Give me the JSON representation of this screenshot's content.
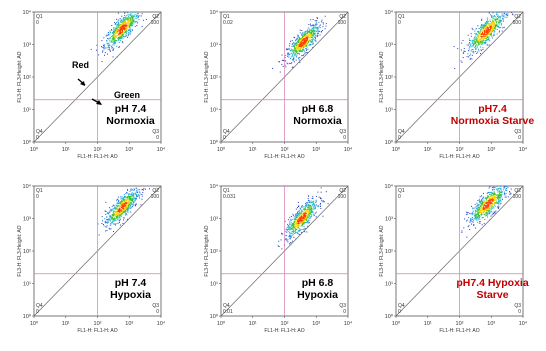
{
  "chart_data": [
    {
      "type": "scatter",
      "xlabel": "FL1-H: FL1-H: AO",
      "ylabel": "FL3-H: FL3-Height: AO",
      "x_scale": "log",
      "y_scale": "log",
      "xlim": [
        1,
        10000
      ],
      "ylim": [
        1,
        10000
      ],
      "x_ticks": [
        "10⁰",
        "10¹",
        "10²",
        "10³",
        "10⁴"
      ],
      "y_ticks": [
        "10⁰",
        "10¹",
        "10²",
        "10³",
        "10⁴"
      ],
      "quadrant_gate": {
        "x": 100,
        "y": 20
      },
      "quadrant_labels": {
        "q1": "Q1",
        "q2": "Q2",
        "q3": "Q3",
        "q4": "Q4"
      },
      "quadrant_values": {
        "q1": "0",
        "q2": "100",
        "q3": "0",
        "q4": "0"
      },
      "condition": [
        "pH 7.4",
        "Normoxia"
      ],
      "condition_color": "#000000",
      "annotations": [
        {
          "text": "Red",
          "points_to": {
            "x": 18,
            "y": 60
          }
        },
        {
          "text": "Green",
          "points_to": {
            "x": 45,
            "y": 25
          }
        }
      ],
      "cluster": {
        "center": [
          600,
          3000
        ],
        "spread": [
          0.28,
          0.3
        ]
      }
    },
    {
      "type": "scatter",
      "xlabel": "FL1-H: FL1-H: AO",
      "ylabel": "FL3-H: FL3-Height: AO",
      "x_scale": "log",
      "y_scale": "log",
      "xlim": [
        1,
        10000
      ],
      "ylim": [
        1,
        10000
      ],
      "x_ticks": [
        "10⁰",
        "10¹",
        "10²",
        "10³",
        "10⁴"
      ],
      "y_ticks": [
        "10⁰",
        "10¹",
        "10²",
        "10³",
        "10⁴"
      ],
      "quadrant_gate": {
        "x": 100,
        "y": 20
      },
      "quadrant_labels": {
        "q1": "Q1",
        "q2": "Q2",
        "q3": "Q3",
        "q4": "Q4"
      },
      "quadrant_values": {
        "q1": "0.02",
        "q2": "100",
        "q3": "0",
        "q4": "0"
      },
      "condition": [
        "pH 6.8",
        "Normoxia"
      ],
      "condition_color": "#000000",
      "annotations": [],
      "cluster": {
        "center": [
          400,
          1200
        ],
        "spread": [
          0.26,
          0.28
        ]
      }
    },
    {
      "type": "scatter",
      "xlabel": "FL1-H: FL1-H: AO",
      "ylabel": "FL3-H: FL3-Height: AO",
      "x_scale": "log",
      "y_scale": "log",
      "xlim": [
        1,
        10000
      ],
      "ylim": [
        1,
        10000
      ],
      "x_ticks": [
        "10⁰",
        "10¹",
        "10²",
        "10³",
        "10⁴"
      ],
      "y_ticks": [
        "10⁰",
        "10¹",
        "10²",
        "10³",
        "10⁴"
      ],
      "quadrant_gate": {
        "x": 100,
        "y": 20
      },
      "quadrant_labels": {
        "q1": "Q1",
        "q2": "Q2",
        "q3": "Q3",
        "q4": "Q4"
      },
      "quadrant_values": {
        "q1": "0",
        "q2": "100",
        "q3": "0",
        "q4": "0"
      },
      "condition": [
        "pH7.4",
        "Normoxia Starve"
      ],
      "condition_color": "#c00000",
      "annotations": [],
      "cluster": {
        "center": [
          700,
          2500
        ],
        "spread": [
          0.3,
          0.32
        ]
      }
    },
    {
      "type": "scatter",
      "xlabel": "FL1-H: FL1-H: AO",
      "ylabel": "FL3-H: FL3-Height: AO",
      "x_scale": "log",
      "y_scale": "log",
      "xlim": [
        1,
        10000
      ],
      "ylim": [
        1,
        10000
      ],
      "x_ticks": [
        "10⁰",
        "10¹",
        "10²",
        "10³",
        "10⁴"
      ],
      "y_ticks": [
        "10⁰",
        "10¹",
        "10²",
        "10³",
        "10⁴"
      ],
      "quadrant_gate": {
        "x": 100,
        "y": 20
      },
      "quadrant_labels": {
        "q1": "Q1",
        "q2": "Q2",
        "q3": "Q3",
        "q4": "Q4"
      },
      "quadrant_values": {
        "q1": "0",
        "q2": "100",
        "q3": "0",
        "q4": "0"
      },
      "condition": [
        "pH 7.4",
        "Hypoxia"
      ],
      "condition_color": "#000000",
      "annotations": [],
      "cluster": {
        "center": [
          600,
          2200
        ],
        "spread": [
          0.26,
          0.28
        ]
      }
    },
    {
      "type": "scatter",
      "xlabel": "FL1-H: FL1-H: AO",
      "ylabel": "FL3-H: FL3-Height: AO",
      "x_scale": "log",
      "y_scale": "log",
      "xlim": [
        1,
        10000
      ],
      "ylim": [
        1,
        10000
      ],
      "x_ticks": [
        "10⁰",
        "10¹",
        "10²",
        "10³",
        "10⁴"
      ],
      "y_ticks": [
        "10⁰",
        "10¹",
        "10²",
        "10³",
        "10⁴"
      ],
      "quadrant_gate": {
        "x": 100,
        "y": 20
      },
      "quadrant_labels": {
        "q1": "Q1",
        "q2": "Q2",
        "q3": "Q3",
        "q4": "Q4"
      },
      "quadrant_values": {
        "q1": "0.031",
        "q2": "100",
        "q3": "0",
        "q4": "0.01"
      },
      "condition": [
        "pH 6.8",
        "Hypoxia"
      ],
      "condition_color": "#000000",
      "annotations": [],
      "cluster": {
        "center": [
          350,
          1000
        ],
        "spread": [
          0.26,
          0.3
        ]
      }
    },
    {
      "type": "scatter",
      "xlabel": "FL1-H: FL1-H: AO",
      "ylabel": "FL3-H: FL3-Height: AO",
      "x_scale": "log",
      "y_scale": "log",
      "xlim": [
        1,
        10000
      ],
      "ylim": [
        1,
        10000
      ],
      "x_ticks": [
        "10⁰",
        "10¹",
        "10²",
        "10³",
        "10⁴"
      ],
      "y_ticks": [
        "10⁰",
        "10¹",
        "10²",
        "10³",
        "10⁴"
      ],
      "quadrant_gate": {
        "x": 100,
        "y": 20
      },
      "quadrant_labels": {
        "q1": "Q1",
        "q2": "Q2",
        "q3": "Q3",
        "q4": "Q4"
      },
      "quadrant_values": {
        "q1": "0",
        "q2": "100",
        "q3": "0",
        "q4": "0"
      },
      "condition": [
        "pH7.4 Hypoxia",
        "Starve"
      ],
      "condition_color": "#c00000",
      "annotations": [],
      "cluster": {
        "center": [
          800,
          2800
        ],
        "spread": [
          0.3,
          0.3
        ]
      }
    }
  ]
}
